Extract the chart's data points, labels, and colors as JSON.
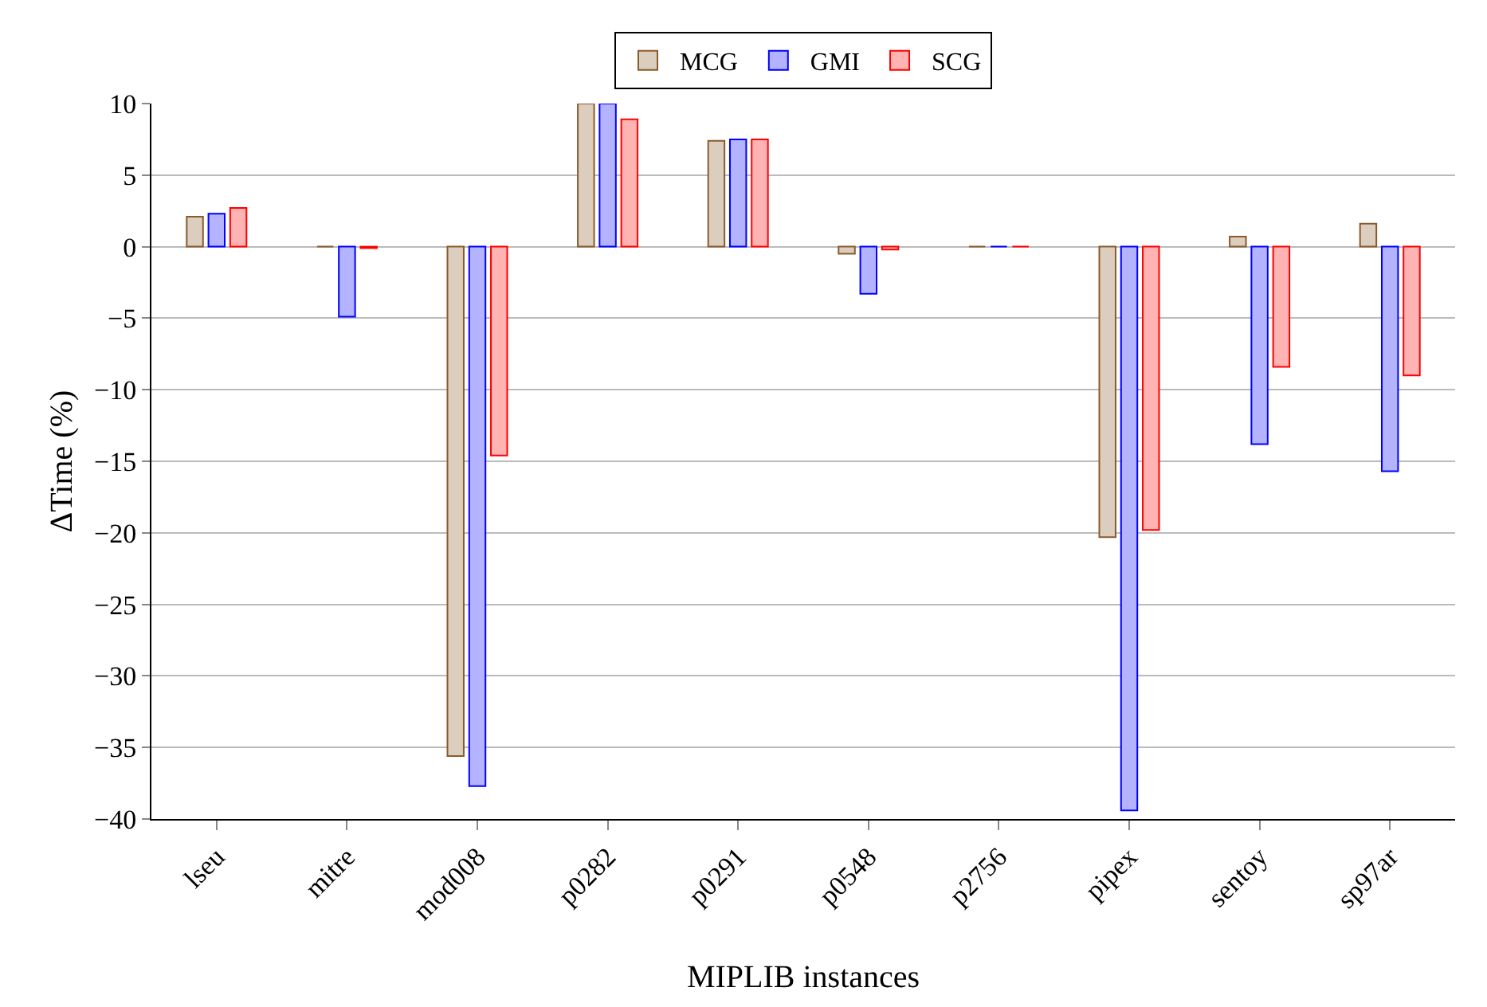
{
  "chart_data": {
    "type": "bar",
    "xlabel": "MIPLIB instances",
    "ylabel": "ΔTime (%)",
    "categories": [
      "lseu",
      "mitre",
      "mod008",
      "p0282",
      "p0291",
      "p0548",
      "p2756",
      "pipex",
      "sentoy",
      "sp97ar"
    ],
    "series": [
      {
        "name": "MCG",
        "color": "#8b5a2b",
        "values": [
          2.1,
          0,
          -35.6,
          10,
          7.4,
          -0.5,
          0,
          -20.3,
          0.7,
          1.6
        ]
      },
      {
        "name": "GMI",
        "color": "#0000ff",
        "values": [
          2.3,
          -4.9,
          -37.7,
          10,
          7.5,
          -3.3,
          0,
          -39.4,
          -13.8,
          -15.7
        ]
      },
      {
        "name": "SCG",
        "color": "#ff0000",
        "values": [
          2.7,
          -0.1,
          -14.6,
          8.9,
          7.5,
          -0.2,
          0,
          -19.8,
          -8.4,
          -9.0
        ]
      }
    ],
    "ylim": [
      -40,
      10
    ],
    "yticks": [
      -40,
      -35,
      -30,
      -25,
      -20,
      -15,
      -10,
      -5,
      0,
      5,
      10
    ],
    "grid": "y",
    "legend": "top"
  }
}
